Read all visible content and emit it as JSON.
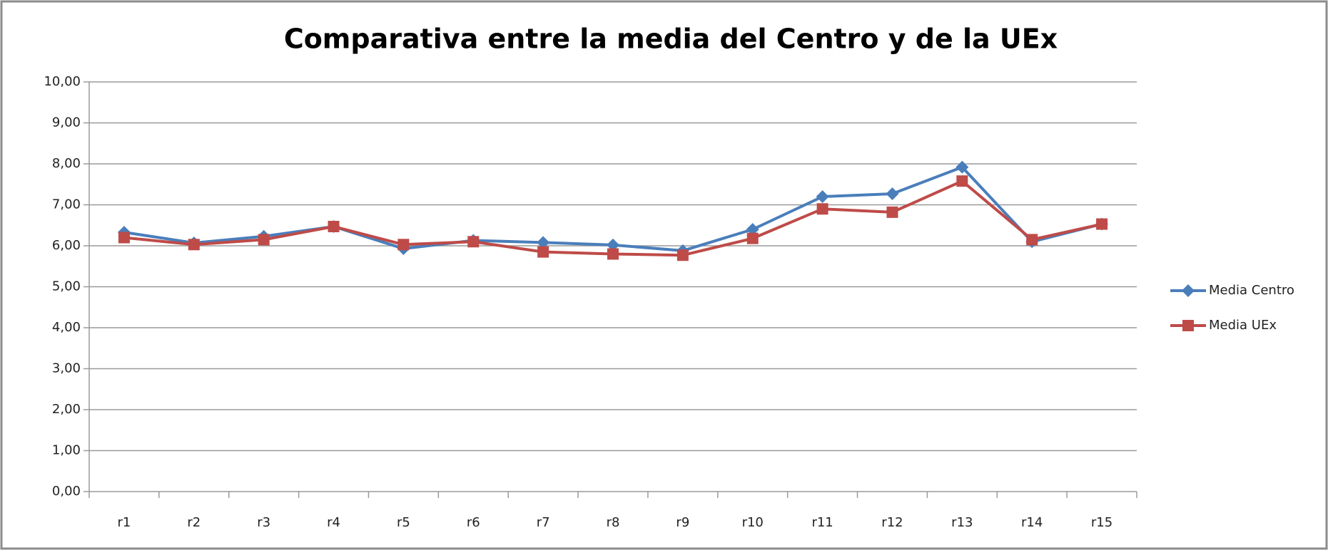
{
  "chart_data": {
    "type": "line",
    "title": "Comparativa entre la media del Centro y de la UEx",
    "categories": [
      "r1",
      "r2",
      "r3",
      "r4",
      "r5",
      "r6",
      "r7",
      "r8",
      "r9",
      "r10",
      "r11",
      "r12",
      "r13",
      "r14",
      "r15"
    ],
    "series": [
      {
        "name": "Media Centro",
        "color": "#4a7ebb",
        "marker": "diamond",
        "values": [
          6.33,
          6.07,
          6.23,
          6.47,
          5.93,
          6.13,
          6.08,
          6.02,
          5.88,
          6.4,
          7.2,
          7.27,
          7.92,
          6.1,
          6.53
        ]
      },
      {
        "name": "Media UEx",
        "color": "#be4b48",
        "marker": "square",
        "values": [
          6.2,
          6.03,
          6.15,
          6.47,
          6.03,
          6.1,
          5.85,
          5.8,
          5.77,
          6.18,
          6.9,
          6.82,
          7.58,
          6.15,
          6.53
        ]
      }
    ],
    "ylim": [
      0,
      10
    ],
    "yticks": [
      {
        "value": 0,
        "label": "0,00"
      },
      {
        "value": 1,
        "label": "1,00"
      },
      {
        "value": 2,
        "label": "2,00"
      },
      {
        "value": 3,
        "label": "3,00"
      },
      {
        "value": 4,
        "label": "4,00"
      },
      {
        "value": 5,
        "label": "5,00"
      },
      {
        "value": 6,
        "label": "6,00"
      },
      {
        "value": 7,
        "label": "7,00"
      },
      {
        "value": 8,
        "label": "8,00"
      },
      {
        "value": 9,
        "label": "9,00"
      },
      {
        "value": 10,
        "label": "10,00"
      }
    ],
    "grid": true,
    "legend": "right"
  }
}
